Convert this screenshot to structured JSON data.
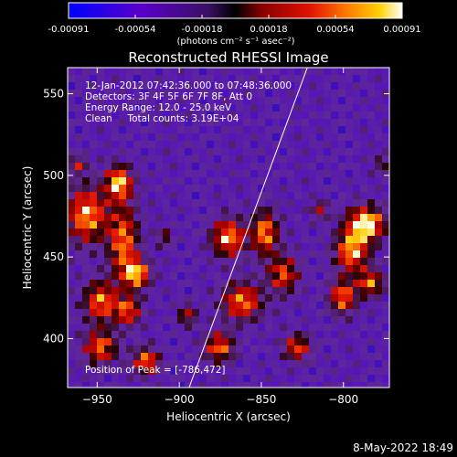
{
  "chart_data": {
    "type": "heatmap",
    "title": "Reconstructed RHESSI Image",
    "colorbar": {
      "ticks": [
        "-0.00091",
        "-0.00054",
        "-0.00018",
        "0.00018",
        "0.00054",
        "0.00091"
      ],
      "range": [
        -0.00091,
        0.00091
      ],
      "unit_label": "(photons cm⁻² s⁻¹ asec⁻²)",
      "colors": [
        "#0000ff",
        "#5a00c8",
        "#6e1a8e",
        "#8a0000",
        "#e01000",
        "#ff8000",
        "#ffd000",
        "#ffffff"
      ]
    },
    "xlabel": "Heliocentric X (arcsec)",
    "ylabel": "Heliocentric Y (arcsec)",
    "xlim": [
      -968,
      -772
    ],
    "ylim": [
      370,
      566
    ],
    "xticks": [
      -950,
      -900,
      -850,
      -800
    ],
    "yticks": [
      400,
      450,
      500,
      550
    ],
    "annotations": [
      "12-Jan-2012 07:42:36.000 to 07:48:36.000",
      "Detectors: 3F 4F 5F 6F 7F 8F, Att 0",
      "Energy Range: 12.0 - 25.0 keV",
      "Clean     Total counts: 3.19E+04"
    ],
    "peak_label": "Position of Peak = [-786,472]",
    "peak": [
      -786,
      472
    ],
    "limb_line": [
      [
        -894,
        370
      ],
      [
        -822,
        566
      ]
    ],
    "grid": false
  },
  "footer_date": "8-May-2022 18:49"
}
